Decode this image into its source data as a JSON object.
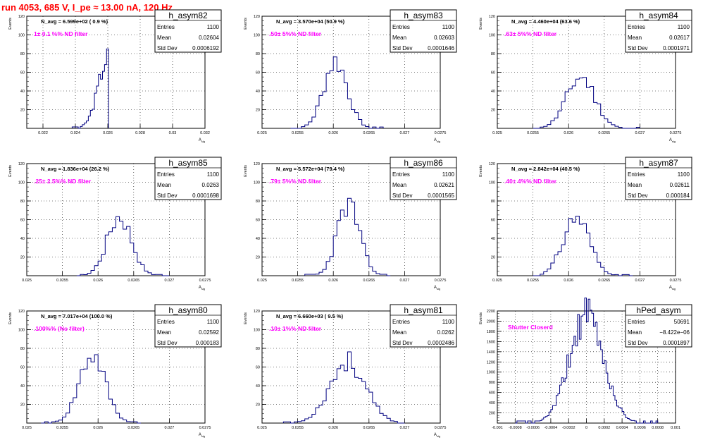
{
  "header": {
    "title": "run 4053,   685 V, I_pe ≈ 13.00 nA, 120 Hz"
  },
  "colors": {
    "hist": "#000080",
    "filter_text": "#ff00ff",
    "title": "#ff0000",
    "grid": "#000000"
  },
  "chart_data": [
    {
      "type": "histogram",
      "name": "h_asym82",
      "navg": "N_avg = 6.599e+02 ( 0.9 %)",
      "filter": "1± 0.1 %% ND filter",
      "stats": {
        "entries": "1100",
        "mean": "0.02604",
        "std_dev": "0.0006192"
      },
      "xlabel": "A_{sig}",
      "ylabel": "Events",
      "xlim": [
        0.021,
        0.032
      ],
      "ylim": [
        0,
        120
      ],
      "xticks": [
        "0.022",
        "0.024",
        "0.026",
        "0.028",
        "0.03",
        "0.032"
      ],
      "xtick_values": [
        0.022,
        0.024,
        0.026,
        0.028,
        0.03,
        0.032
      ],
      "yticks": [
        20,
        40,
        60,
        80,
        100,
        120
      ],
      "gauss": {
        "mu": 0.02604,
        "sigma": 0.00062,
        "peak": 76,
        "nbins": 18,
        "bin_start": 0.0238,
        "bin_width": 0.000125,
        "seed": 3
      }
    },
    {
      "type": "histogram",
      "name": "h_asym83",
      "navg": "N_avg = 3.570e+04 (50.9 %)",
      "filter": ".50± 5%% ND filter",
      "stats": {
        "entries": "1100",
        "mean": "0.02603",
        "std_dev": "0.0001646"
      },
      "xlabel": "A_{sig}",
      "ylabel": "Events",
      "xlim": [
        0.025,
        0.0275
      ],
      "ylim": [
        0,
        120
      ],
      "xticks": [
        "0.025",
        "0.0255",
        "0.026",
        "0.0265",
        "0.027",
        "0.0275"
      ],
      "xtick_values": [
        0.025,
        0.0255,
        0.026,
        0.0265,
        0.027,
        0.0275
      ],
      "yticks": [
        20,
        40,
        60,
        80,
        100,
        120
      ],
      "gauss": {
        "mu": 0.02603,
        "sigma": 0.000165,
        "peak": 72,
        "nbins": 26,
        "bin_start": 0.0254,
        "bin_width": 5e-05,
        "seed": 7
      }
    },
    {
      "type": "histogram",
      "name": "h_asym84",
      "navg": "N_avg = 4.460e+04 (63.6 %)",
      "filter": ".63± 5%% ND filter",
      "stats": {
        "entries": "1100",
        "mean": "0.02617",
        "std_dev": "0.0001971"
      },
      "xlabel": "A_{sig}",
      "ylabel": "Events",
      "xlim": [
        0.025,
        0.0275
      ],
      "ylim": [
        0,
        120
      ],
      "xticks": [
        "0.025",
        "0.0255",
        "0.026",
        "0.0265",
        "0.027",
        "0.0275"
      ],
      "xtick_values": [
        0.025,
        0.0255,
        0.026,
        0.0265,
        0.027,
        0.0275
      ],
      "yticks": [
        20,
        40,
        60,
        80,
        100,
        120
      ],
      "gauss": {
        "mu": 0.02617,
        "sigma": 0.000197,
        "peak": 55,
        "nbins": 30,
        "bin_start": 0.0255,
        "bin_width": 5e-05,
        "seed": 11
      }
    },
    {
      "type": "histogram",
      "name": "h_asym85",
      "navg": "N_avg = 1.836e+04 (26.2 %)",
      "filter": ".25± 2.5%% ND filter",
      "stats": {
        "entries": "1100",
        "mean": "0.0263",
        "std_dev": "0.0001698"
      },
      "xlabel": "A_{sig}",
      "ylabel": "Events",
      "xlim": [
        0.025,
        0.0275
      ],
      "ylim": [
        0,
        120
      ],
      "xticks": [
        "0.025",
        "0.0255",
        "0.026",
        "0.0265",
        "0.027",
        "0.0275"
      ],
      "xtick_values": [
        0.025,
        0.0255,
        0.026,
        0.0265,
        0.027,
        0.0275
      ],
      "yticks": [
        20,
        40,
        60,
        80,
        100,
        120
      ],
      "gauss": {
        "mu": 0.0263,
        "sigma": 0.00017,
        "peak": 64,
        "nbins": 26,
        "bin_start": 0.0257,
        "bin_width": 5e-05,
        "seed": 17
      }
    },
    {
      "type": "histogram",
      "name": "h_asym86",
      "navg": "N_avg = 5.572e+04 (79.4 %)",
      "filter": ".79± 5%% ND filter",
      "stats": {
        "entries": "1100",
        "mean": "0.02621",
        "std_dev": "0.0001565"
      },
      "xlabel": "A_{sig}",
      "ylabel": "Events",
      "xlim": [
        0.025,
        0.0275
      ],
      "ylim": [
        0,
        120
      ],
      "xticks": [
        "0.025",
        "0.0255",
        "0.026",
        "0.0265",
        "0.027",
        "0.0275"
      ],
      "xtick_values": [
        0.025,
        0.0255,
        0.026,
        0.0265,
        0.027,
        0.0275
      ],
      "yticks": [
        20,
        40,
        60,
        80,
        100,
        120
      ],
      "gauss": {
        "mu": 0.02621,
        "sigma": 0.000157,
        "peak": 76,
        "nbins": 24,
        "bin_start": 0.0256,
        "bin_width": 5e-05,
        "seed": 23
      }
    },
    {
      "type": "histogram",
      "name": "h_asym87",
      "navg": "N_avg = 2.842e+04 (40.5 %)",
      "filter": ".40± 4%% ND filter",
      "stats": {
        "entries": "1100",
        "mean": "0.02611",
        "std_dev": "0.000184"
      },
      "xlabel": "A_{sig}",
      "ylabel": "Events",
      "xlim": [
        0.025,
        0.0275
      ],
      "ylim": [
        0,
        120
      ],
      "xticks": [
        "0.025",
        "0.0255",
        "0.026",
        "0.0265",
        "0.027",
        "0.0275"
      ],
      "xtick_values": [
        0.025,
        0.0255,
        0.026,
        0.0265,
        0.027,
        0.0275
      ],
      "yticks": [
        20,
        40,
        60,
        80,
        100,
        120
      ],
      "gauss": {
        "mu": 0.02611,
        "sigma": 0.000184,
        "peak": 63,
        "nbins": 28,
        "bin_start": 0.0255,
        "bin_width": 5e-05,
        "seed": 31
      }
    },
    {
      "type": "histogram",
      "name": "h_asym80",
      "navg": "N_avg = 7.017e+04 (100.0 %)",
      "filter": ".100%% (No filter)",
      "stats": {
        "entries": "1100",
        "mean": "0.02592",
        "std_dev": "0.000183"
      },
      "xlabel": "A_{sig}",
      "ylabel": "Events",
      "xlim": [
        0.025,
        0.0275
      ],
      "ylim": [
        0,
        120
      ],
      "xticks": [
        "0.025",
        "0.0255",
        "0.026",
        "0.0265",
        "0.027",
        "0.0275"
      ],
      "xtick_values": [
        0.025,
        0.0255,
        0.026,
        0.0265,
        0.027,
        0.0275
      ],
      "yticks": [
        20,
        40,
        60,
        80,
        100,
        120
      ],
      "gauss": {
        "mu": 0.02592,
        "sigma": 0.000183,
        "peak": 72,
        "nbins": 28,
        "bin_start": 0.0252,
        "bin_width": 5e-05,
        "seed": 41
      }
    },
    {
      "type": "histogram",
      "name": "h_asym81",
      "navg": "N_avg = 6.660e+03 ( 9.5 %)",
      "filter": ".10± 1%% ND filter",
      "stats": {
        "entries": "1100",
        "mean": "0.0262",
        "std_dev": "0.0002486"
      },
      "xlabel": "A_{sig}",
      "ylabel": "Events",
      "xlim": [
        0.025,
        0.0275
      ],
      "ylim": [
        0,
        120
      ],
      "xticks": [
        "0.025",
        "0.0255",
        "0.026",
        "0.0265",
        "0.027",
        "0.0275"
      ],
      "xtick_values": [
        0.025,
        0.0255,
        0.026,
        0.0265,
        0.027,
        0.0275
      ],
      "yticks": [
        20,
        40,
        60,
        80,
        100,
        120
      ],
      "gauss": {
        "mu": 0.0262,
        "sigma": 0.000249,
        "peak": 66,
        "nbins": 34,
        "bin_start": 0.0253,
        "bin_width": 5e-05,
        "seed": 53
      }
    },
    {
      "type": "histogram",
      "name": "hPed_asym",
      "navg": "",
      "filter": "Shutter Closerd",
      "stats": {
        "entries": "50691",
        "mean": "−8.422e−06",
        "std_dev": "0.0001897"
      },
      "xlabel": "",
      "ylabel": "Events",
      "xlim": [
        -0.001,
        0.001
      ],
      "ylim": [
        0,
        2200
      ],
      "xticks": [
        "-0.001",
        "-0.0008",
        "-0.0006",
        "-0.0004",
        "-0.0002",
        "0",
        "0.0002",
        "0.0004",
        "0.0006",
        "0.0008",
        "0.001"
      ],
      "xtick_values": [
        -0.001,
        -0.0008,
        -0.0006,
        -0.0004,
        -0.0002,
        0,
        0.0002,
        0.0004,
        0.0006,
        0.0008,
        0.001
      ],
      "yticks": [
        200,
        400,
        600,
        800,
        1000,
        1200,
        1400,
        1600,
        1800,
        2000,
        2200
      ],
      "gauss": {
        "mu": 0.0,
        "sigma": 0.00019,
        "peak": 2100,
        "nbins": 80,
        "bin_start": -0.0008,
        "bin_width": 2e-05,
        "seed": 61
      }
    }
  ]
}
